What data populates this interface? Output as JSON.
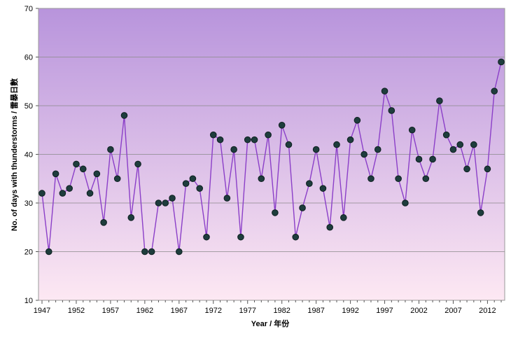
{
  "chart_data": {
    "type": "line",
    "title": "",
    "xlabel": "Year / 年份",
    "ylabel": "No. of days with thunderstorms / 雷暴日數",
    "ylim": [
      10,
      70
    ],
    "y_ticks": [
      10,
      20,
      30,
      40,
      50,
      60,
      70
    ],
    "x_tick_labels": [
      "1947",
      "1952",
      "1957",
      "1962",
      "1967",
      "1972",
      "1977",
      "1982",
      "1987",
      "1992",
      "1997",
      "2002",
      "2007",
      "2012"
    ],
    "grid": true,
    "legend": "none",
    "colors": {
      "line": "#8b3fc8",
      "marker_fill": "#1e3d3d",
      "marker_stroke": "#0d1f1f",
      "bg_top": "#b894dc",
      "bg_bottom": "#fde8f3",
      "grid": "#8a8a8a"
    },
    "series": [
      {
        "x": [
          1947,
          1948,
          1949,
          1950,
          1951,
          1952,
          1953,
          1954,
          1955,
          1956,
          1957,
          1958,
          1959,
          1960,
          1961,
          1962,
          1963,
          1964,
          1965,
          1966,
          1967,
          1968,
          1969,
          1970,
          1971,
          1972,
          1973,
          1974,
          1975,
          1976,
          1977,
          1978,
          1979,
          1980,
          1981,
          1982,
          1983,
          1984,
          1985,
          1986,
          1987,
          1988,
          1989,
          1990,
          1991,
          1992,
          1993,
          1994,
          1995,
          1996,
          1997,
          1998,
          1999,
          2000,
          2001,
          2002,
          2003,
          2004,
          2005,
          2006,
          2007,
          2008,
          2009,
          2010,
          2011,
          2012,
          2013,
          2014
        ],
        "values": [
          32,
          20,
          36,
          32,
          33,
          38,
          37,
          32,
          36,
          26,
          41,
          35,
          48,
          27,
          38,
          20,
          20,
          30,
          30,
          31,
          20,
          34,
          35,
          33,
          23,
          44,
          43,
          31,
          41,
          23,
          43,
          43,
          35,
          44,
          28,
          46,
          42,
          23,
          29,
          34,
          41,
          33,
          25,
          42,
          27,
          43,
          47,
          40,
          35,
          41,
          53,
          49,
          35,
          30,
          45,
          39,
          35,
          39,
          51,
          44,
          41,
          42,
          37,
          42,
          28,
          37,
          53,
          59
        ]
      }
    ]
  }
}
